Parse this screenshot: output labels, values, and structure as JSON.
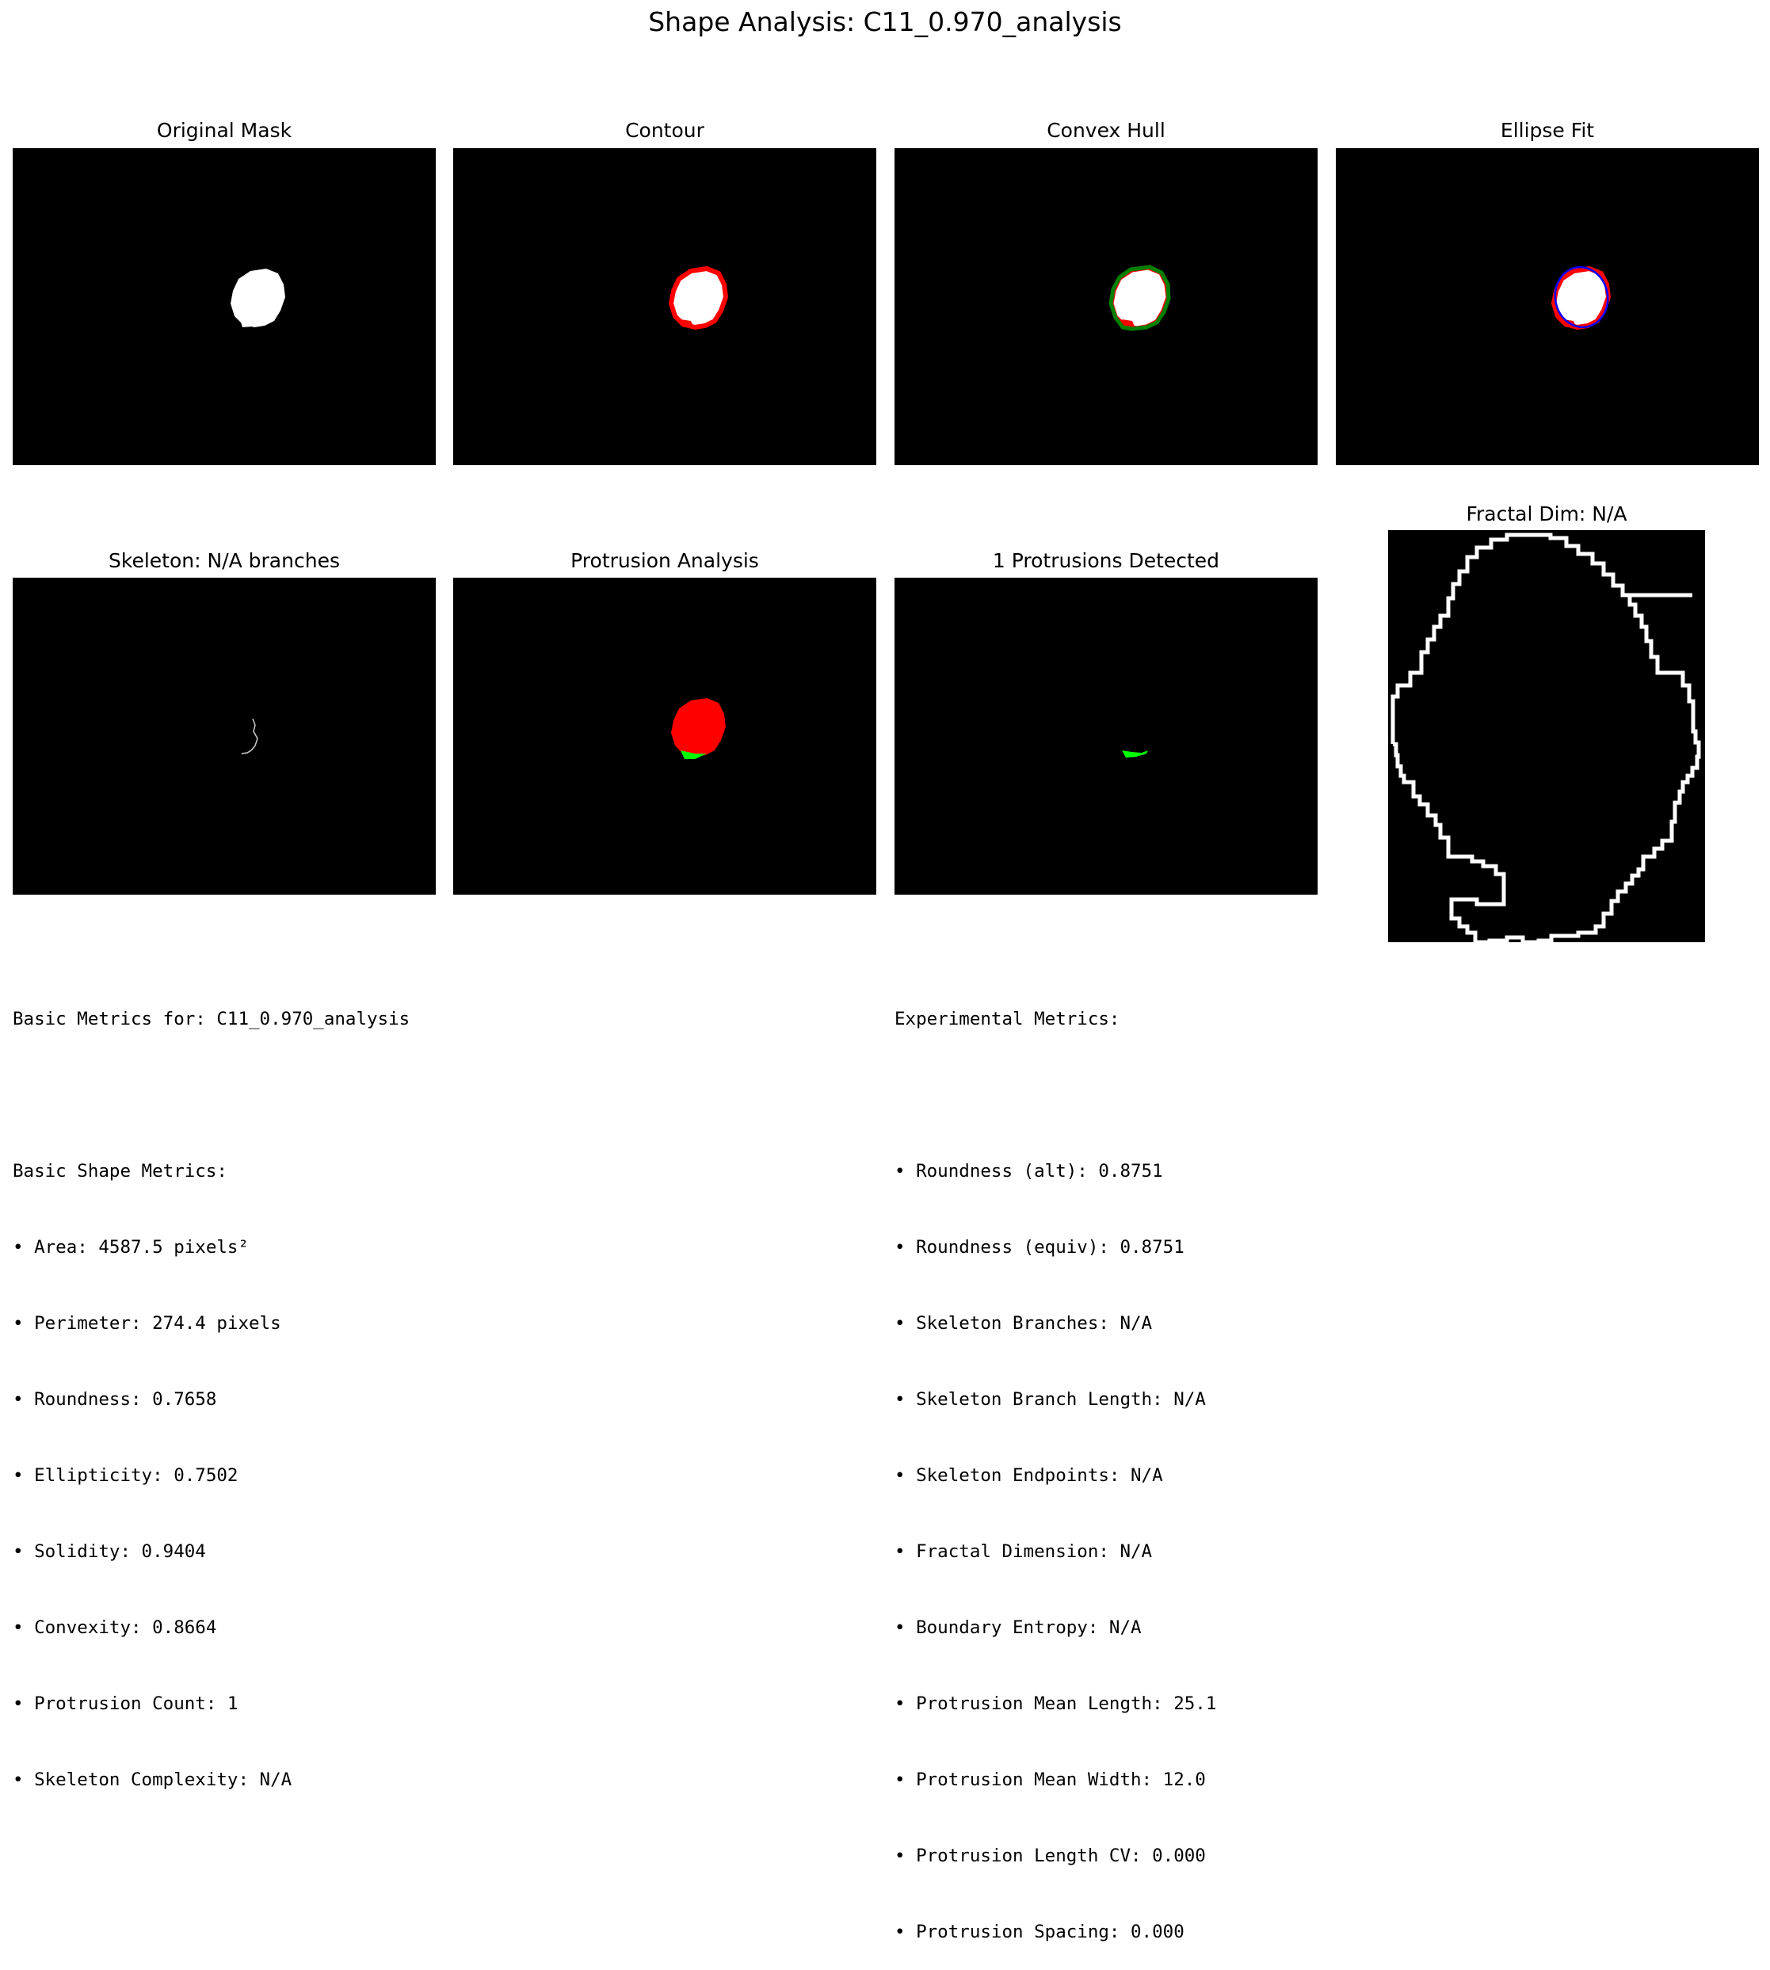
{
  "figure": {
    "title": "Shape Analysis: C11_0.970_analysis"
  },
  "panels": {
    "original_mask": "Original Mask",
    "contour": "Contour",
    "convex_hull": "Convex Hull",
    "ellipse_fit": "Ellipse Fit",
    "skeleton": "Skeleton: N/A branches",
    "protrusion_analysis": "Protrusion Analysis",
    "protrusions_detected": "1 Protrusions Detected",
    "fractal": "Fractal Dim: N/A"
  },
  "colors": {
    "background": "#000000",
    "mask": "#ffffff",
    "contour": "#ff0000",
    "hull": "#008000",
    "ellipse": "#0000ff",
    "protrusion": "#00ff00"
  },
  "basic_metrics": {
    "header": "Basic Metrics for: C11_0.970_analysis",
    "section": "Basic Shape Metrics:",
    "items": [
      "• Area: 4587.5 pixels²",
      "• Perimeter: 274.4 pixels",
      "• Roundness: 0.7658",
      "• Ellipticity: 0.7502",
      "• Solidity: 0.9404",
      "• Convexity: 0.8664",
      "• Protrusion Count: 1",
      "• Skeleton Complexity: N/A"
    ]
  },
  "experimental_metrics": {
    "header": "Experimental Metrics:",
    "items": [
      "• Roundness (alt): 0.8751",
      "• Roundness (equiv): 0.8751",
      "• Skeleton Branches: N/A",
      "• Skeleton Branch Length: N/A",
      "• Skeleton Endpoints: N/A",
      "• Fractal Dimension: N/A",
      "• Boundary Entropy: N/A",
      "• Protrusion Mean Length: 25.1",
      "• Protrusion Mean Width: 12.0",
      "• Protrusion Length CV: 0.000",
      "• Protrusion Spacing: 0.000"
    ]
  }
}
